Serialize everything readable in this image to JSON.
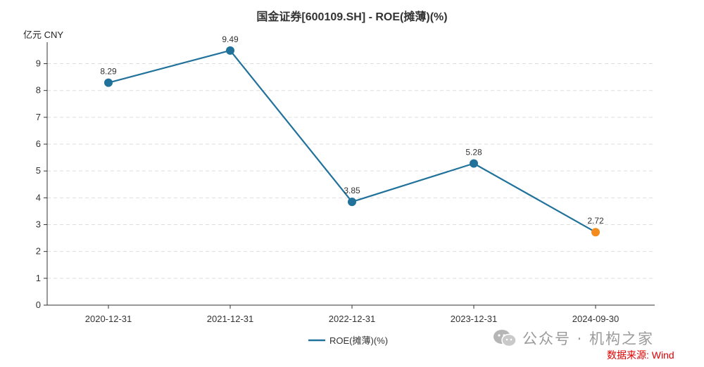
{
  "chart_data": {
    "type": "line",
    "title": "国金证券[600109.SH] - ROE(摊薄)(%)",
    "unit_label": "亿元  CNY",
    "categories": [
      "2020-12-31",
      "2021-12-31",
      "2022-12-31",
      "2023-12-31",
      "2024-09-30"
    ],
    "series": [
      {
        "name": "ROE(摊薄)(%)",
        "values": [
          8.29,
          9.49,
          3.85,
          5.28,
          2.72
        ],
        "data_labels": [
          "8.29",
          "9.49",
          "3.85",
          "5.28",
          "2.72"
        ],
        "color": "#21729b",
        "highlight_last_color": "#f28c1e"
      }
    ],
    "ylim": [
      0,
      9.8
    ],
    "yticks": [
      0,
      1,
      2,
      3,
      4,
      5,
      6,
      7,
      8,
      9
    ],
    "grid": true,
    "legend_position": "bottom-center"
  },
  "watermark": {
    "text": "公众号 · 机构之家",
    "icon": "wechat-icon"
  },
  "source_text": "数据来源: Wind",
  "colors": {
    "axis": "#333333",
    "grid": "#dddddd",
    "source": "#e00000"
  }
}
